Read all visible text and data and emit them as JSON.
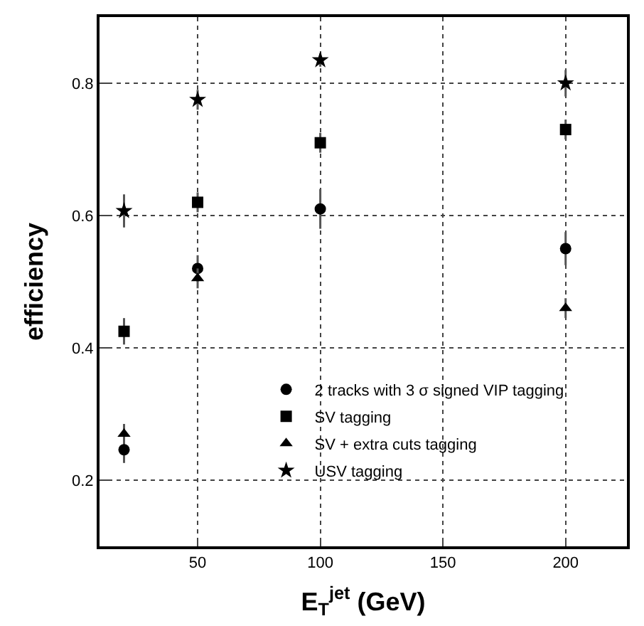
{
  "chart_data": {
    "type": "scatter",
    "xlabel": "E$_{T}$$^{jet}$ (GeV)",
    "ylabel": "efficiency",
    "x": [
      20,
      50,
      100,
      200
    ],
    "xlim": [
      10,
      225
    ],
    "xticks": [
      50,
      100,
      150,
      200
    ],
    "ylim": [
      0.1,
      0.9
    ],
    "yticks": [
      0.2,
      0.4,
      0.6,
      0.8
    ],
    "grid": true,
    "legend": "bottom",
    "series": [
      {
        "name": "2 tracks with 3 σ signed VIP tagging",
        "color": "#000000",
        "marker": "circle",
        "values": [
          0.246,
          0.52,
          0.61,
          0.55
        ],
        "errors": [
          0.02,
          0.02,
          0.03,
          0.025
        ]
      },
      {
        "name": "SV tagging",
        "color": "#000000",
        "marker": "square",
        "values": [
          0.425,
          0.62,
          0.71,
          0.73
        ],
        "errors": [
          0.02,
          0.015,
          0.015,
          0.015
        ]
      },
      {
        "name": "SV + extra cuts tagging",
        "color": "#000000",
        "marker": "triangle",
        "values": [
          0.27,
          0.505,
          null,
          0.46
        ],
        "errors": [
          0.015,
          0.015,
          null,
          0.015
        ]
      },
      {
        "name": "USV tagging",
        "color": "#000000",
        "marker": "star",
        "values": [
          0.607,
          0.775,
          0.835,
          0.8
        ],
        "errors": [
          0.025,
          0.015,
          0.01,
          0.02
        ]
      }
    ]
  }
}
